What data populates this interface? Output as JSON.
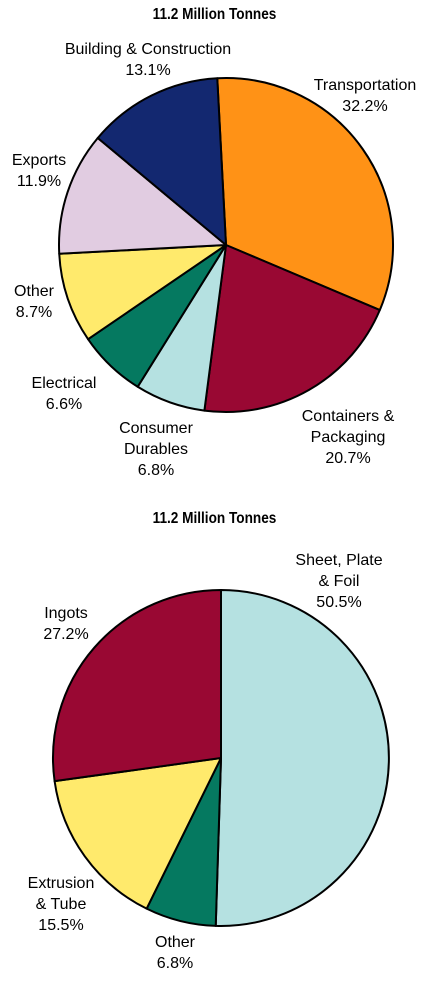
{
  "chart_data": [
    {
      "type": "pie",
      "title": "11.2 Million Tonnes",
      "start_angle_deg": -3,
      "direction": "clockwise",
      "slices": [
        {
          "label": "Transportation",
          "pct_text": "32.2%",
          "value": 32.2,
          "color": "#FF9216"
        },
        {
          "label": "Containers &\nPackaging",
          "pct_text": "20.7%",
          "value": 20.7,
          "color": "#990833"
        },
        {
          "label": "Consumer\nDurables",
          "pct_text": "6.8%",
          "value": 6.8,
          "color": "#B5E1E1"
        },
        {
          "label": "Electrical",
          "pct_text": "6.6%",
          "value": 6.6,
          "color": "#057960"
        },
        {
          "label": "Other",
          "pct_text": "8.7%",
          "value": 8.7,
          "color": "#FFEA6C"
        },
        {
          "label": "Exports",
          "pct_text": "11.9%",
          "value": 11.9,
          "color": "#E1CCE1"
        },
        {
          "label": "Building & Construction",
          "pct_text": "13.1%",
          "value": 13.1,
          "color": "#132870"
        }
      ]
    },
    {
      "type": "pie",
      "title": "11.2 Million Tonnes",
      "start_angle_deg": 0,
      "direction": "clockwise",
      "slices": [
        {
          "label": "Sheet, Plate\n& Foil",
          "pct_text": "50.5%",
          "value": 50.5,
          "color": "#B5E1E1"
        },
        {
          "label": "Other",
          "pct_text": "6.8%",
          "value": 6.8,
          "color": "#057960"
        },
        {
          "label": "Extrusion\n& Tube",
          "pct_text": "15.5%",
          "value": 15.5,
          "color": "#FFEA6C"
        },
        {
          "label": "Ingots",
          "pct_text": "27.2%",
          "value": 27.2,
          "color": "#990833"
        }
      ]
    }
  ]
}
